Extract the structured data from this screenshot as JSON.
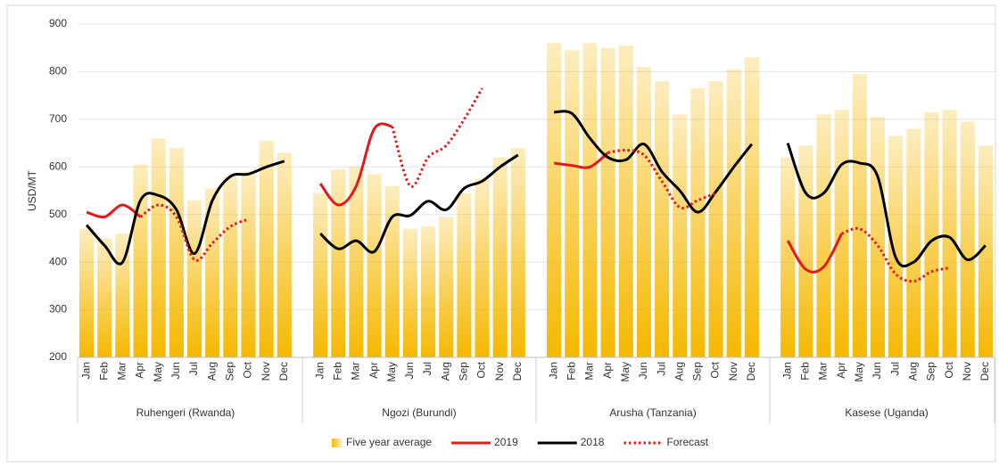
{
  "chart_data": {
    "type": "bar",
    "ylabel": "USD/MT",
    "ylim": [
      200,
      900
    ],
    "yticks": [
      200,
      300,
      400,
      500,
      600,
      700,
      800,
      900
    ],
    "grid": true,
    "legend": "bottom",
    "group_labels": [
      "Ruhengeri (Rwanda)",
      "Ngozi (Burundi)",
      "Arusha (Tanzania)",
      "Kasese (Uganda)"
    ],
    "categories": [
      "Jan",
      "Feb",
      "Mar",
      "Apr",
      "May",
      "Jun",
      "Jul",
      "Aug",
      "Sep",
      "Oct",
      "Nov",
      "Dec",
      "Jan",
      "Feb",
      "Mar",
      "Apr",
      "May",
      "Jun",
      "Jul",
      "Aug",
      "Sep",
      "Oct",
      "Nov",
      "Dec",
      "Jan",
      "Feb",
      "Mar",
      "Apr",
      "May",
      "Jun",
      "Jul",
      "Aug",
      "Sep",
      "Oct",
      "Nov",
      "Dec",
      "Jan",
      "Feb",
      "Mar",
      "Apr",
      "May",
      "Jun",
      "Jul",
      "Aug",
      "Sep",
      "Oct",
      "Nov",
      "Dec"
    ],
    "series": [
      {
        "name": "Five year average",
        "type": "bar",
        "color": "#f5b800",
        "values": [
          470,
          450,
          460,
          605,
          660,
          640,
          530,
          555,
          580,
          590,
          655,
          630,
          545,
          595,
          600,
          585,
          560,
          470,
          475,
          495,
          545,
          575,
          620,
          640,
          860,
          845,
          860,
          850,
          855,
          810,
          780,
          710,
          765,
          780,
          805,
          830,
          620,
          645,
          710,
          720,
          795,
          705,
          665,
          680,
          715,
          720,
          695,
          645
        ]
      },
      {
        "name": "2019",
        "type": "line",
        "color": "#e01b1b",
        "dash": "solid",
        "values": [
          505,
          495,
          520,
          495,
          null,
          null,
          null,
          null,
          null,
          null,
          null,
          null,
          565,
          520,
          560,
          680,
          685,
          null,
          null,
          null,
          null,
          null,
          null,
          null,
          608,
          603,
          600,
          630,
          null,
          null,
          null,
          null,
          null,
          null,
          null,
          null,
          445,
          385,
          390,
          460,
          null,
          null,
          null,
          null,
          null,
          null,
          null,
          null
        ]
      },
      {
        "name": "2018",
        "type": "line",
        "color": "#000000",
        "dash": "solid",
        "values": [
          478,
          435,
          400,
          530,
          540,
          510,
          418,
          530,
          580,
          585,
          600,
          612,
          460,
          428,
          445,
          422,
          495,
          498,
          528,
          510,
          555,
          570,
          600,
          625,
          715,
          712,
          660,
          620,
          615,
          648,
          590,
          550,
          505,
          548,
          600,
          648,
          650,
          545,
          545,
          605,
          608,
          580,
          410,
          400,
          445,
          452,
          405,
          435
        ]
      },
      {
        "name": "Forecast",
        "type": "line",
        "color": "#e01b1b",
        "dash": "dotted",
        "values": [
          null,
          null,
          null,
          495,
          520,
          495,
          405,
          440,
          475,
          490,
          null,
          null,
          null,
          null,
          null,
          null,
          685,
          560,
          620,
          645,
          700,
          765,
          null,
          null,
          null,
          null,
          null,
          630,
          635,
          625,
          570,
          515,
          530,
          545,
          null,
          null,
          null,
          null,
          null,
          460,
          470,
          435,
          375,
          360,
          380,
          388,
          null,
          null
        ]
      }
    ]
  }
}
